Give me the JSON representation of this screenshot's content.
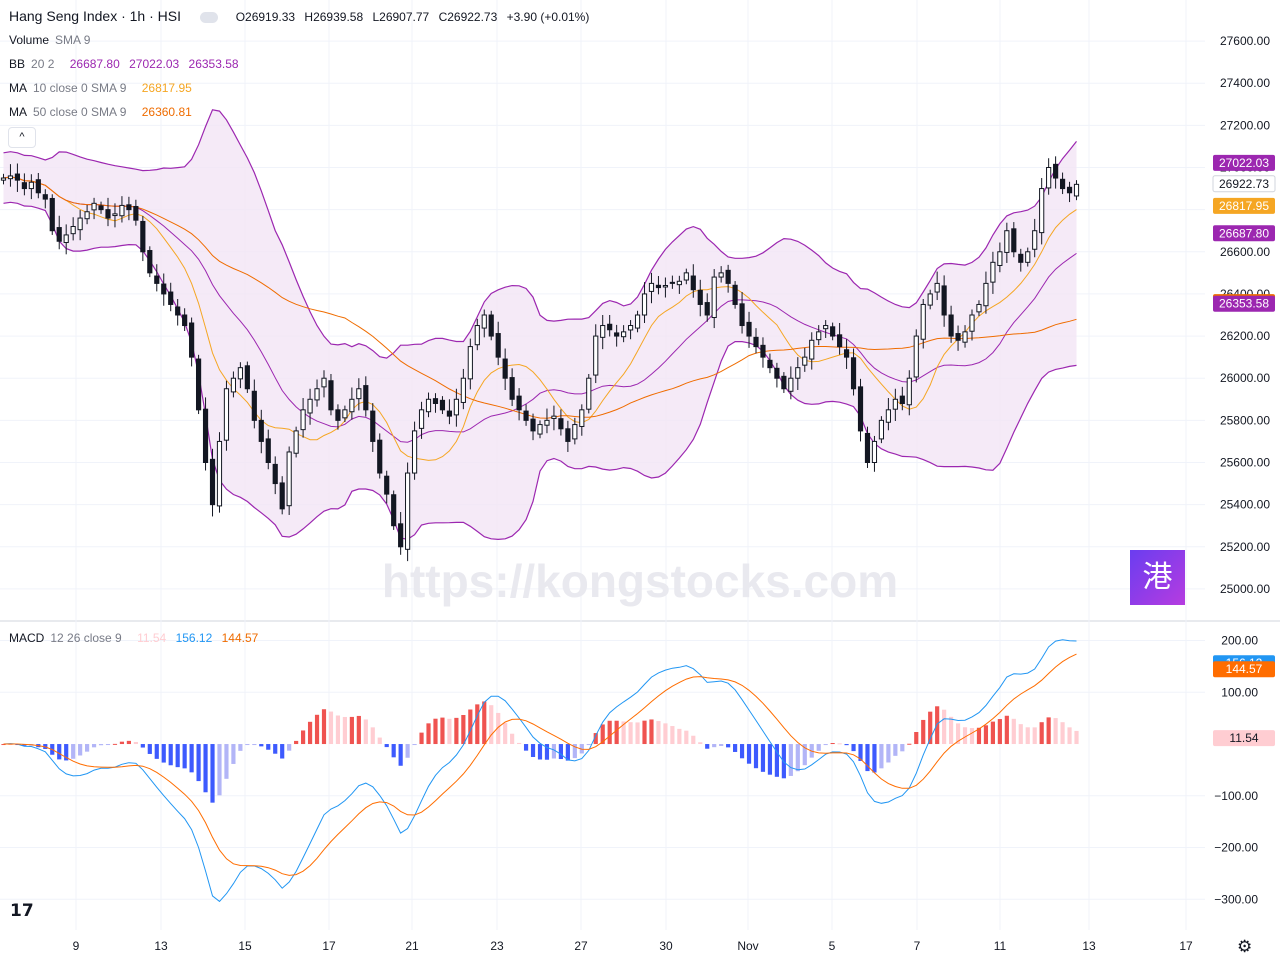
{
  "header": {
    "symbol": "Hang Seng Index · 1h · HSI",
    "open": "O26919.33",
    "high": "H26939.58",
    "low": "L26907.77",
    "close": "C26922.73",
    "change": "+3.90 (+0.01%)"
  },
  "indicators": {
    "volume": {
      "name": "Volume",
      "params": "SMA 9"
    },
    "bb": {
      "name": "BB",
      "params": "20 2",
      "basis": "26687.80",
      "upper": "27022.03",
      "lower": "26353.58",
      "color": "#9c27b0"
    },
    "ma10": {
      "name": "MA",
      "params": "10 close 0 SMA 9",
      "value": "26817.95",
      "color": "#f5a623"
    },
    "ma50": {
      "name": "MA",
      "params": "50 close 0 SMA 9",
      "value": "26360.81",
      "color": "#ef6c00"
    },
    "macd": {
      "name": "MACD",
      "params": "12 26 close 9",
      "hist": "11.54",
      "macd": "156.12",
      "signal": "144.57"
    }
  },
  "watermark": "https://kongstocks.com",
  "badge_glyph": "港",
  "tv_logo": "17",
  "colors": {
    "up": "#ffffff",
    "down": "#131722",
    "bb_line": "#9c27b0",
    "bb_fill": "#f3e5f5",
    "ma10": "#f5a623",
    "ma50": "#ef6c00",
    "macd": "#2196f3",
    "signal": "#ff6d00",
    "hist_up_strong": "#ef5350",
    "hist_up_weak": "#ffcdd2",
    "hist_down_strong": "#3d5afe",
    "hist_down_weak": "#b2b5f7"
  },
  "chart_data": [
    {
      "type": "candlestick",
      "title": "Hang Seng Index · 1h · HSI",
      "x_ticks": [
        "9",
        "13",
        "15",
        "17",
        "21",
        "23",
        "27",
        "30",
        "Nov",
        "5",
        "7",
        "11",
        "13",
        "17"
      ],
      "ylim": [
        24900,
        27700
      ],
      "y_ticks": [
        "27600.00",
        "27400.00",
        "27200.00",
        "27000.00",
        "26800.00",
        "26600.00",
        "26400.00",
        "26200.00",
        "26000.00",
        "25800.00",
        "25600.00",
        "25400.00",
        "25200.00",
        "25000.00"
      ],
      "price_labels": [
        {
          "text": "27022.03",
          "value": 27022.03,
          "color": "#9c27b0"
        },
        {
          "text": "26922.73",
          "value": 26922.73,
          "color": "#ffffff"
        },
        {
          "text": "26817.95",
          "value": 26817.95,
          "color": "#f5a623"
        },
        {
          "text": "26687.80",
          "value": 26687.8,
          "color": "#9c27b0"
        },
        {
          "text": "26360.81",
          "value": 26360.81,
          "color": "#ef6c00"
        },
        {
          "text": "26353.58",
          "value": 26353.58,
          "color": "#9c27b0"
        }
      ],
      "close_series": [
        26950,
        26960,
        26940,
        26900,
        26930,
        26880,
        26850,
        26700,
        26650,
        26680,
        26720,
        26760,
        26790,
        26830,
        26800,
        26760,
        26780,
        26820,
        26800,
        26750,
        26600,
        26500,
        26450,
        26400,
        26350,
        26300,
        26250,
        26100,
        25850,
        25600,
        25400,
        25700,
        25950,
        26000,
        26050,
        25950,
        25800,
        25700,
        25600,
        25500,
        25380,
        25650,
        25750,
        25850,
        25900,
        25950,
        26000,
        25850,
        25800,
        25850,
        25900,
        25950,
        25850,
        25700,
        25550,
        25450,
        25300,
        25200,
        25550,
        25750,
        25850,
        25900,
        25880,
        25850,
        25820,
        25900,
        26000,
        26150,
        26250,
        26300,
        26200,
        26100,
        26000,
        25900,
        25850,
        25800,
        25750,
        25780,
        25800,
        25820,
        25760,
        25700,
        25780,
        25850,
        26000,
        26200,
        26250,
        26230,
        26200,
        26220,
        26250,
        26300,
        26400,
        26450,
        26430,
        26440,
        26450,
        26460,
        26500,
        26420,
        26350,
        26300,
        26480,
        26500,
        26450,
        26350,
        26250,
        26200,
        26150,
        26100,
        26050,
        26000,
        25950,
        26000,
        26050,
        26100,
        26180,
        26220,
        26250,
        26200,
        26150,
        26100,
        25950,
        25750,
        25600,
        25700,
        25800,
        25850,
        25900,
        25880,
        26000,
        26200,
        26350,
        26400,
        26450,
        26300,
        26200,
        26180,
        26220,
        26300,
        26350,
        26450,
        26550,
        26600,
        26700,
        26600,
        26550,
        26600,
        26700,
        26900,
        27000,
        26950,
        26900,
        26880,
        26920
      ]
    },
    {
      "type": "line",
      "title": "MACD 12 26 close 9",
      "ylim": [
        -340,
        230
      ],
      "y_ticks": [
        "200.00",
        "100.00",
        "−100.00",
        "−200.00",
        "−300.00"
      ],
      "price_labels": [
        {
          "text": "156.12",
          "value": 156.12,
          "color": "#2196f3"
        },
        {
          "text": "144.57",
          "value": 144.57,
          "color": "#ff6d00"
        },
        {
          "text": "11.54",
          "value": 11.54,
          "color": "#ffcdd2"
        }
      ]
    }
  ]
}
